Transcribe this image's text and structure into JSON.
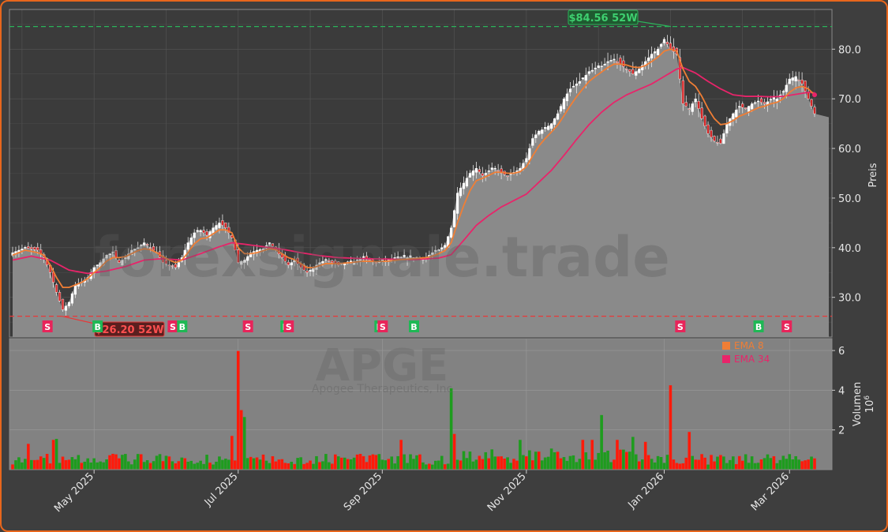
{
  "chart_data": {
    "type": "candlestick",
    "ticker": "APGE",
    "company": "Apogee Therapeutics, Inc",
    "watermark": "forexsignale.trade",
    "ylabel_price": "Preis",
    "ylabel_volume": "Volumen",
    "volume_exponent": "10",
    "volume_exponent_power": "6",
    "price_ylim": [
      22,
      88
    ],
    "volume_ylim": [
      0,
      6.6
    ],
    "price_ticks": [
      "30.0",
      "40.0",
      "50.0",
      "60.0",
      "70.0",
      "80.0"
    ],
    "volume_ticks": [
      "2",
      "4",
      "6"
    ],
    "x_ticks": [
      "May 2025",
      "Jul 2025",
      "Sep 2025",
      "Nov 2025",
      "Jan 2026",
      "Mar 2026"
    ],
    "legend": [
      {
        "name": "EMA 8",
        "color": "#f07e35"
      },
      {
        "name": "EMA 34",
        "color": "#e8246a"
      }
    ],
    "high_52w": {
      "value": 84.56,
      "label": "$84.56 52W",
      "color": "#2bb35a"
    },
    "low_52w": {
      "value": 26.2,
      "label": "$26.20 52W",
      "color": "#e83838"
    },
    "close_level": 66.3,
    "price_path": [
      [
        0,
        39
      ],
      [
        4,
        40
      ],
      [
        8,
        39.5
      ],
      [
        10,
        38
      ],
      [
        12,
        35
      ],
      [
        14,
        31
      ],
      [
        16,
        27.5
      ],
      [
        18,
        29
      ],
      [
        20,
        32.5
      ],
      [
        22,
        33
      ],
      [
        24,
        34
      ],
      [
        26,
        36
      ],
      [
        28,
        37
      ],
      [
        30,
        38.5
      ],
      [
        32,
        39
      ],
      [
        34,
        37
      ],
      [
        36,
        38
      ],
      [
        38,
        39.5
      ],
      [
        40,
        40
      ],
      [
        42,
        41
      ],
      [
        44,
        40
      ],
      [
        46,
        39
      ],
      [
        48,
        37
      ],
      [
        50,
        36.5
      ],
      [
        52,
        36
      ],
      [
        54,
        38
      ],
      [
        56,
        41
      ],
      [
        58,
        43
      ],
      [
        60,
        43.5
      ],
      [
        62,
        42.5
      ],
      [
        64,
        44
      ],
      [
        66,
        45
      ],
      [
        68,
        44
      ],
      [
        70,
        42
      ],
      [
        72,
        37
      ],
      [
        74,
        37.5
      ],
      [
        76,
        39
      ],
      [
        78,
        39.5
      ],
      [
        80,
        39.8
      ],
      [
        82,
        41
      ],
      [
        84,
        39.5
      ],
      [
        86,
        38
      ],
      [
        88,
        36.5
      ],
      [
        90,
        37.5
      ],
      [
        92,
        36
      ],
      [
        94,
        35
      ],
      [
        96,
        36
      ],
      [
        98,
        37
      ],
      [
        100,
        37.5
      ],
      [
        104,
        36.5
      ],
      [
        108,
        37
      ],
      [
        112,
        38
      ],
      [
        116,
        37
      ],
      [
        120,
        37.5
      ],
      [
        124,
        38
      ],
      [
        128,
        38
      ],
      [
        132,
        38
      ],
      [
        134,
        39
      ],
      [
        136,
        39.5
      ],
      [
        138,
        40.5
      ],
      [
        140,
        44
      ],
      [
        142,
        51
      ],
      [
        144,
        53
      ],
      [
        146,
        55
      ],
      [
        148,
        56
      ],
      [
        150,
        54.5
      ],
      [
        152,
        55.5
      ],
      [
        154,
        56
      ],
      [
        156,
        55
      ],
      [
        158,
        54.5
      ],
      [
        160,
        55
      ],
      [
        162,
        56
      ],
      [
        164,
        58
      ],
      [
        166,
        62
      ],
      [
        168,
        63.5
      ],
      [
        170,
        64
      ],
      [
        172,
        65
      ],
      [
        174,
        67
      ],
      [
        176,
        70
      ],
      [
        178,
        72
      ],
      [
        180,
        73
      ],
      [
        182,
        74
      ],
      [
        184,
        75.5
      ],
      [
        186,
        76
      ],
      [
        188,
        76.5
      ],
      [
        190,
        77.5
      ],
      [
        192,
        78
      ],
      [
        194,
        77
      ],
      [
        196,
        76
      ],
      [
        198,
        75
      ],
      [
        200,
        76
      ],
      [
        202,
        77.5
      ],
      [
        204,
        79
      ],
      [
        206,
        80
      ],
      [
        208,
        82
      ],
      [
        210,
        80
      ],
      [
        212,
        79
      ],
      [
        214,
        69
      ],
      [
        216,
        68
      ],
      [
        218,
        70
      ],
      [
        220,
        66
      ],
      [
        222,
        63
      ],
      [
        224,
        61.5
      ],
      [
        226,
        61
      ],
      [
        228,
        65
      ],
      [
        230,
        67
      ],
      [
        232,
        68.5
      ],
      [
        234,
        68
      ],
      [
        236,
        69
      ],
      [
        238,
        69.5
      ],
      [
        240,
        69
      ],
      [
        242,
        69.8
      ],
      [
        244,
        70
      ],
      [
        246,
        71.5
      ],
      [
        248,
        74
      ],
      [
        250,
        74.5
      ],
      [
        252,
        73
      ],
      [
        254,
        70
      ],
      [
        256,
        67
      ],
      [
        256,
        66.3
      ],
      [
        260,
        66.3
      ]
    ],
    "ema8": [
      [
        0,
        38.5
      ],
      [
        4,
        39.5
      ],
      [
        8,
        39
      ],
      [
        10,
        38.5
      ],
      [
        12,
        36.5
      ],
      [
        14,
        34
      ],
      [
        16,
        32
      ],
      [
        18,
        32
      ],
      [
        20,
        32.5
      ],
      [
        22,
        33
      ],
      [
        24,
        33.8
      ],
      [
        26,
        35
      ],
      [
        28,
        36
      ],
      [
        30,
        37.3
      ],
      [
        32,
        38
      ],
      [
        34,
        38
      ],
      [
        36,
        38.2
      ],
      [
        38,
        38.8
      ],
      [
        40,
        39.4
      ],
      [
        42,
        39.8
      ],
      [
        44,
        39.6
      ],
      [
        46,
        39
      ],
      [
        48,
        38.2
      ],
      [
        50,
        37.5
      ],
      [
        52,
        37
      ],
      [
        54,
        37.5
      ],
      [
        56,
        39
      ],
      [
        58,
        40.8
      ],
      [
        60,
        41.8
      ],
      [
        62,
        42
      ],
      [
        64,
        42.8
      ],
      [
        66,
        43.6
      ],
      [
        68,
        43.6
      ],
      [
        70,
        43
      ],
      [
        72,
        40
      ],
      [
        74,
        38.8
      ],
      [
        76,
        38.8
      ],
      [
        78,
        39
      ],
      [
        80,
        39.4
      ],
      [
        82,
        39.8
      ],
      [
        84,
        39.6
      ],
      [
        86,
        38.8
      ],
      [
        88,
        38
      ],
      [
        90,
        37.6
      ],
      [
        92,
        36.8
      ],
      [
        94,
        36
      ],
      [
        96,
        36
      ],
      [
        98,
        36.4
      ],
      [
        100,
        36.8
      ],
      [
        104,
        36.8
      ],
      [
        108,
        37
      ],
      [
        112,
        37.3
      ],
      [
        116,
        37.2
      ],
      [
        120,
        37.3
      ],
      [
        124,
        37.6
      ],
      [
        128,
        37.8
      ],
      [
        132,
        38
      ],
      [
        134,
        38.3
      ],
      [
        136,
        38.8
      ],
      [
        138,
        39.4
      ],
      [
        140,
        41
      ],
      [
        142,
        45
      ],
      [
        144,
        48.5
      ],
      [
        146,
        51.5
      ],
      [
        148,
        53.5
      ],
      [
        150,
        54
      ],
      [
        152,
        54.6
      ],
      [
        154,
        55.2
      ],
      [
        156,
        55.2
      ],
      [
        158,
        55
      ],
      [
        160,
        55
      ],
      [
        162,
        55.3
      ],
      [
        164,
        56.3
      ],
      [
        166,
        58.5
      ],
      [
        168,
        60.5
      ],
      [
        170,
        62
      ],
      [
        172,
        63.3
      ],
      [
        174,
        64.7
      ],
      [
        176,
        66.6
      ],
      [
        178,
        68.6
      ],
      [
        180,
        70.4
      ],
      [
        182,
        72
      ],
      [
        184,
        73.5
      ],
      [
        186,
        74.5
      ],
      [
        188,
        75.4
      ],
      [
        190,
        76.3
      ],
      [
        192,
        77
      ],
      [
        194,
        77
      ],
      [
        196,
        76.8
      ],
      [
        198,
        76.4
      ],
      [
        200,
        76.3
      ],
      [
        202,
        76.7
      ],
      [
        204,
        77.5
      ],
      [
        206,
        78.4
      ],
      [
        208,
        79.6
      ],
      [
        210,
        80
      ],
      [
        212,
        79.6
      ],
      [
        214,
        76
      ],
      [
        216,
        73.5
      ],
      [
        218,
        72.5
      ],
      [
        220,
        70.5
      ],
      [
        222,
        68
      ],
      [
        224,
        66
      ],
      [
        226,
        64.8
      ],
      [
        228,
        65
      ],
      [
        230,
        65.6
      ],
      [
        232,
        66.5
      ],
      [
        234,
        67
      ],
      [
        236,
        67.6
      ],
      [
        238,
        68.2
      ],
      [
        240,
        68.5
      ],
      [
        242,
        69
      ],
      [
        244,
        69.3
      ],
      [
        246,
        70
      ],
      [
        248,
        71.3
      ],
      [
        250,
        72.2
      ],
      [
        252,
        72.5
      ],
      [
        254,
        72
      ],
      [
        256,
        70.8
      ]
    ],
    "ema34": [
      [
        0,
        37.5
      ],
      [
        6,
        38.3
      ],
      [
        12,
        37.5
      ],
      [
        18,
        35.5
      ],
      [
        24,
        34.8
      ],
      [
        30,
        35.3
      ],
      [
        36,
        36.2
      ],
      [
        42,
        37.5
      ],
      [
        48,
        37.8
      ],
      [
        54,
        37.5
      ],
      [
        60,
        38.8
      ],
      [
        66,
        40.2
      ],
      [
        70,
        41
      ],
      [
        74,
        40.7
      ],
      [
        80,
        40.2
      ],
      [
        86,
        39.7
      ],
      [
        92,
        39
      ],
      [
        98,
        38.4
      ],
      [
        104,
        38
      ],
      [
        112,
        37.8
      ],
      [
        120,
        37.7
      ],
      [
        128,
        37.6
      ],
      [
        136,
        37.9
      ],
      [
        140,
        38.6
      ],
      [
        144,
        41.5
      ],
      [
        148,
        44.5
      ],
      [
        152,
        46.5
      ],
      [
        156,
        48.2
      ],
      [
        160,
        49.5
      ],
      [
        164,
        50.8
      ],
      [
        168,
        53.2
      ],
      [
        172,
        55.6
      ],
      [
        176,
        58.6
      ],
      [
        180,
        61.8
      ],
      [
        184,
        64.8
      ],
      [
        188,
        67.3
      ],
      [
        192,
        69.3
      ],
      [
        196,
        70.8
      ],
      [
        200,
        71.9
      ],
      [
        204,
        73
      ],
      [
        208,
        74.5
      ],
      [
        212,
        76
      ],
      [
        214,
        76.3
      ],
      [
        218,
        75.2
      ],
      [
        222,
        73.5
      ],
      [
        226,
        72
      ],
      [
        230,
        70.8
      ],
      [
        234,
        70.5
      ],
      [
        238,
        70.5
      ],
      [
        242,
        70.4
      ],
      [
        246,
        70.5
      ],
      [
        250,
        70.9
      ],
      [
        254,
        71.3
      ],
      [
        256,
        71.2
      ]
    ],
    "signals": [
      {
        "type": "S",
        "i": 11
      },
      {
        "type": "B",
        "i": 27
      },
      {
        "type": "S",
        "i": 51
      },
      {
        "type": "B",
        "i": 54
      },
      {
        "type": "S",
        "i": 75
      },
      {
        "type": "B",
        "i": 87
      },
      {
        "type": "S",
        "i": 88
      },
      {
        "type": "B",
        "i": 117
      },
      {
        "type": "S",
        "i": 118
      },
      {
        "type": "B",
        "i": 128
      },
      {
        "type": "S",
        "i": 213
      },
      {
        "type": "B",
        "i": 238
      },
      {
        "type": "S",
        "i": 247
      }
    ],
    "volume_spikes": [
      {
        "i": 72,
        "v": 5.98,
        "up": false
      },
      {
        "i": 73,
        "v": 3.0,
        "up": false
      },
      {
        "i": 74,
        "v": 2.65,
        "up": true
      },
      {
        "i": 70,
        "v": 1.7,
        "up": false
      },
      {
        "i": 124,
        "v": 1.5,
        "up": false
      },
      {
        "i": 140,
        "v": 4.1,
        "up": true
      },
      {
        "i": 141,
        "v": 1.8,
        "up": false
      },
      {
        "i": 162,
        "v": 1.5,
        "up": true
      },
      {
        "i": 188,
        "v": 2.75,
        "up": true
      },
      {
        "i": 198,
        "v": 1.65,
        "up": true
      },
      {
        "i": 210,
        "v": 4.25,
        "up": false
      },
      {
        "i": 216,
        "v": 1.9,
        "up": false
      },
      {
        "i": 5,
        "v": 1.3,
        "up": false
      },
      {
        "i": 14,
        "v": 1.55,
        "up": true
      },
      {
        "i": 13,
        "v": 1.5,
        "up": false
      },
      {
        "i": 182,
        "v": 1.5,
        "up": false
      },
      {
        "i": 185,
        "v": 1.5,
        "up": false
      },
      {
        "i": 193,
        "v": 1.5,
        "up": false
      },
      {
        "i": 202,
        "v": 1.4,
        "up": false
      }
    ]
  }
}
